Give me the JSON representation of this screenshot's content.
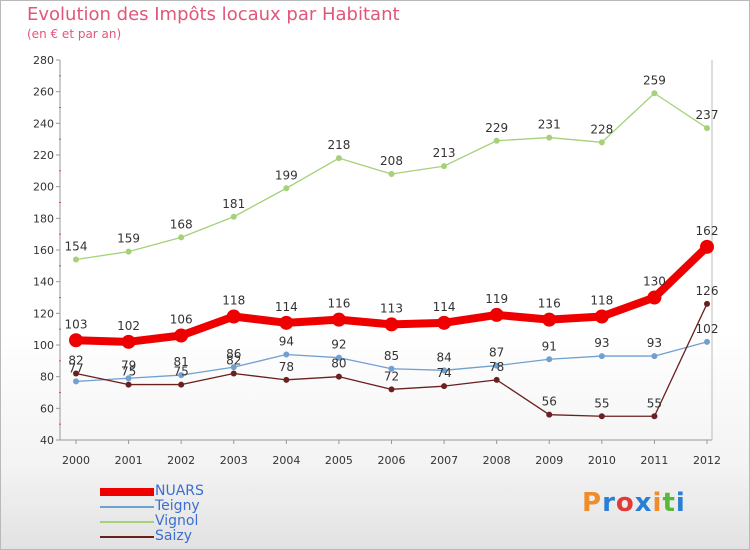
{
  "title": "Evolution des Impôts locaux par Habitant",
  "subtitle": "(en € et par an)",
  "logo": {
    "text": "Proxiti",
    "colors": [
      "#f08c2a",
      "#2a7fd4",
      "#e13a3a",
      "#2a7fd4",
      "#f08c2a",
      "#58b83a",
      "#2a7fd4"
    ]
  },
  "chart_data": {
    "type": "line",
    "x": [
      "2000",
      "2001",
      "2002",
      "2003",
      "2004",
      "2005",
      "2006",
      "2007",
      "2008",
      "2009",
      "2010",
      "2011",
      "2012"
    ],
    "ylim": [
      40,
      280
    ],
    "yticks": [
      40,
      60,
      80,
      100,
      120,
      140,
      160,
      180,
      200,
      220,
      240,
      260,
      280
    ],
    "grid": false,
    "legend_position": "bottom-left",
    "series": [
      {
        "name": "NUARS",
        "color": "#ee0000",
        "values": [
          103,
          102,
          106,
          118,
          114,
          116,
          113,
          114,
          119,
          116,
          118,
          130,
          162
        ]
      },
      {
        "name": "Teigny",
        "color": "#6fa0cf",
        "values": [
          77,
          79,
          81,
          86,
          94,
          92,
          85,
          84,
          87,
          91,
          93,
          93,
          102
        ]
      },
      {
        "name": "Vignol",
        "color": "#a6d17a",
        "values": [
          154,
          159,
          168,
          181,
          199,
          218,
          208,
          213,
          229,
          231,
          228,
          259,
          237
        ]
      },
      {
        "name": "Saizy",
        "color": "#6b2020",
        "values": [
          82,
          75,
          75,
          82,
          78,
          80,
          72,
          74,
          78,
          56,
          55,
          55,
          126
        ]
      }
    ],
    "data_labels": {
      "NUARS": [
        "103",
        "102",
        "106",
        "118",
        "114",
        "116",
        "113",
        "114",
        "119",
        "116",
        "118",
        "130",
        "162"
      ],
      "Teigny": [
        "77",
        "79",
        "81",
        "86",
        "94",
        "92",
        "85",
        "84",
        "87",
        "91",
        "93",
        "93",
        "102"
      ],
      "Vignol": [
        "154",
        "159",
        "168",
        "181",
        "199",
        "218",
        "208",
        "213",
        "229",
        "231",
        "228",
        "259",
        "237"
      ],
      "Saizy": [
        "82",
        "75",
        "75",
        "82",
        "78",
        "80",
        "72",
        "74",
        "78",
        "56",
        "55",
        "55",
        "126"
      ]
    }
  }
}
